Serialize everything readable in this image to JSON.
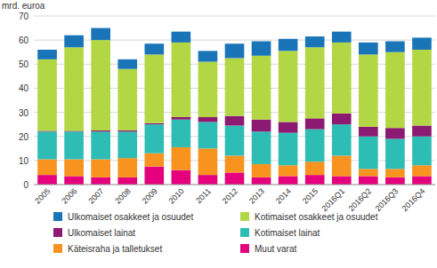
{
  "chart_data": {
    "type": "bar",
    "stacked": true,
    "grid": true,
    "legend": "bottom",
    "y_label": "mrd. euroa",
    "categories": [
      "2005",
      "2006",
      "2007",
      "2008",
      "2009",
      "2010",
      "2011",
      "2012",
      "2013",
      "2014",
      "2015",
      "2016Q1",
      "2016Q2",
      "2016Q3",
      "2016Q4"
    ],
    "ylim": [
      0,
      70
    ],
    "yticks": [
      0,
      10,
      20,
      30,
      40,
      50,
      60,
      70
    ],
    "series": [
      {
        "name": "Muut varat",
        "color": "#e5007d",
        "values": [
          4,
          3.5,
          3,
          3,
          7.5,
          6,
          4,
          5,
          3,
          3.5,
          4,
          3.5,
          3.5,
          3,
          3.5
        ]
      },
      {
        "name": "Käteisraha ja talletukset",
        "color": "#f7931e",
        "values": [
          6.5,
          7,
          7.5,
          8,
          5.5,
          9.5,
          11,
          7,
          5.5,
          4.5,
          5.5,
          8.5,
          3,
          3.5,
          4.5
        ]
      },
      {
        "name": "Kotimaiset lainat",
        "color": "#2ebdb5",
        "values": [
          11.5,
          11.5,
          11.5,
          11,
          12,
          11.5,
          11,
          12.5,
          13.5,
          13.5,
          13.5,
          13,
          13.5,
          12.5,
          12
        ]
      },
      {
        "name": "Ulkomaiset lainat",
        "color": "#8c1a73",
        "values": [
          0.3,
          0.3,
          0.5,
          0.5,
          0.5,
          1,
          2,
          4,
          5,
          4.5,
          4.5,
          4.5,
          4,
          4.5,
          4.5
        ]
      },
      {
        "name": "Kotimaiset osakkeet ja osuudet",
        "color": "#b3d744",
        "values": [
          29.7,
          34.7,
          37.5,
          25.5,
          28.5,
          31,
          23,
          24,
          26.5,
          29.5,
          29.5,
          29.5,
          30,
          31.5,
          31.5
        ]
      },
      {
        "name": "Ulkomaiset osakkeet ja osuudet",
        "color": "#1a75b8",
        "values": [
          4,
          5,
          5,
          4,
          4.5,
          4.5,
          4.5,
          6,
          6,
          5,
          4.5,
          4.5,
          5,
          4.5,
          5
        ]
      }
    ]
  }
}
